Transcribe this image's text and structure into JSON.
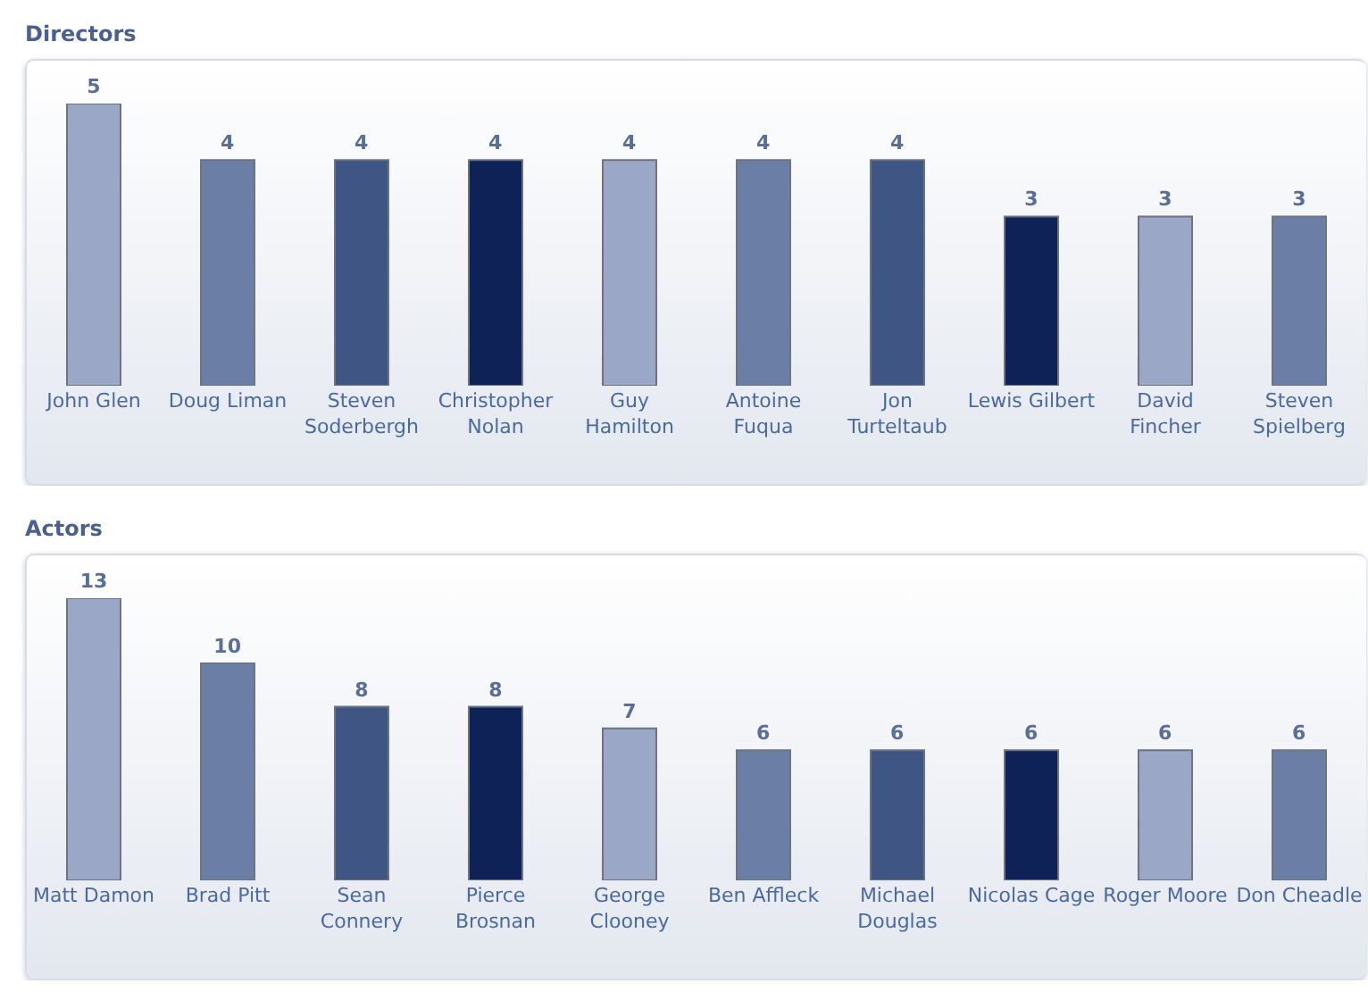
{
  "chart_data": [
    {
      "type": "bar",
      "title": "Directors",
      "data_labels": true,
      "categories": [
        "John Glen",
        "Doug Liman",
        "Steven\nSoderbergh",
        "Christopher\nNolan",
        "Guy\nHamilton",
        "Antoine\nFuqua",
        "Jon\nTurteltaub",
        "Lewis Gilbert",
        "David\nFincher",
        "Steven\nSpielberg"
      ],
      "values": [
        5,
        4,
        4,
        4,
        4,
        4,
        4,
        3,
        3,
        3
      ],
      "colors": [
        "#9aa7c6",
        "#6b7ea6",
        "#3f5584",
        "#0f2257",
        "#9aa7c6",
        "#6b7ea6",
        "#3f5584",
        "#0f2257",
        "#9aa7c6",
        "#6b7ea6"
      ]
    },
    {
      "type": "bar",
      "title": "Actors",
      "data_labels": true,
      "categories": [
        "Matt Damon",
        "Brad Pitt",
        "Sean\nConnery",
        "Pierce\nBrosnan",
        "George\nClooney",
        "Ben Affleck",
        "Michael\nDouglas",
        "Nicolas Cage",
        "Roger Moore",
        "Don Cheadle"
      ],
      "values": [
        13,
        10,
        8,
        8,
        7,
        6,
        6,
        6,
        6,
        6
      ],
      "colors": [
        "#9aa7c6",
        "#6b7ea6",
        "#3f5584",
        "#0f2257",
        "#9aa7c6",
        "#6b7ea6",
        "#3f5584",
        "#0f2257",
        "#9aa7c6",
        "#6b7ea6"
      ]
    }
  ]
}
